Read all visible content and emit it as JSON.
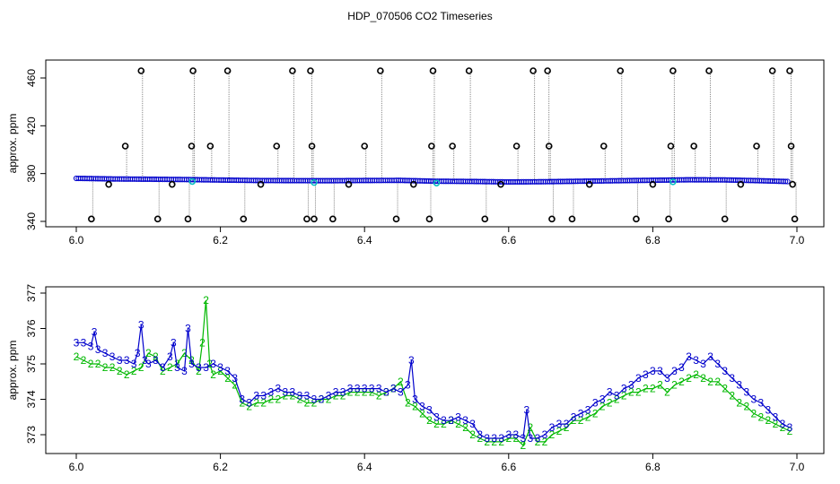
{
  "title": "HDP_070506  CO2 Timeseries",
  "colors": {
    "series2": "#00b800",
    "series3": "#0000cc",
    "outlier": "#000000",
    "flag": "#00bfbf",
    "drop": "#888888"
  },
  "chart_data": [
    {
      "type": "scatter",
      "ylabel": "approx. ppm",
      "xlabel": "",
      "xlim": [
        6.0,
        7.0
      ],
      "ylim": [
        340,
        470
      ],
      "x_ticks": [
        "6.0",
        "6.2",
        "6.4",
        "6.6",
        "6.8",
        "7.0"
      ],
      "y_ticks": [
        "340",
        "380",
        "420",
        "460"
      ],
      "grid": false,
      "baseline": [
        [
          6.0,
          376.0
        ],
        [
          6.05,
          375.5
        ],
        [
          6.1,
          375.3
        ],
        [
          6.15,
          375.0
        ],
        [
          6.2,
          374.6
        ],
        [
          6.25,
          374.2
        ],
        [
          6.3,
          374.1
        ],
        [
          6.35,
          374.0
        ],
        [
          6.4,
          374.2
        ],
        [
          6.45,
          374.3
        ],
        [
          6.5,
          373.6
        ],
        [
          6.55,
          373.4
        ],
        [
          6.6,
          373.0
        ],
        [
          6.65,
          373.2
        ],
        [
          6.7,
          373.6
        ],
        [
          6.75,
          374.0
        ],
        [
          6.8,
          374.4
        ],
        [
          6.85,
          374.8
        ],
        [
          6.9,
          374.7
        ],
        [
          6.95,
          374.0
        ],
        [
          6.99,
          373.3
        ]
      ],
      "outliers": [
        [
          6.021,
          342
        ],
        [
          6.045,
          371
        ],
        [
          6.068,
          403
        ],
        [
          6.09,
          466
        ],
        [
          6.113,
          342
        ],
        [
          6.133,
          371
        ],
        [
          6.155,
          342
        ],
        [
          6.16,
          403
        ],
        [
          6.162,
          466
        ],
        [
          6.186,
          403
        ],
        [
          6.21,
          466
        ],
        [
          6.232,
          342
        ],
        [
          6.256,
          371
        ],
        [
          6.278,
          403
        ],
        [
          6.3,
          466
        ],
        [
          6.32,
          342
        ],
        [
          6.325,
          466
        ],
        [
          6.327,
          403
        ],
        [
          6.33,
          342
        ],
        [
          6.356,
          342
        ],
        [
          6.378,
          371
        ],
        [
          6.4,
          403
        ],
        [
          6.422,
          466
        ],
        [
          6.444,
          342
        ],
        [
          6.468,
          371
        ],
        [
          6.49,
          342
        ],
        [
          6.493,
          403
        ],
        [
          6.495,
          466
        ],
        [
          6.522,
          403
        ],
        [
          6.545,
          466
        ],
        [
          6.567,
          342
        ],
        [
          6.589,
          371
        ],
        [
          6.611,
          403
        ],
        [
          6.634,
          466
        ],
        [
          6.654,
          466
        ],
        [
          6.656,
          403
        ],
        [
          6.66,
          342
        ],
        [
          6.688,
          342
        ],
        [
          6.712,
          371
        ],
        [
          6.732,
          403
        ],
        [
          6.755,
          466
        ],
        [
          6.777,
          342
        ],
        [
          6.8,
          371
        ],
        [
          6.822,
          342
        ],
        [
          6.825,
          403
        ],
        [
          6.828,
          466
        ],
        [
          6.857,
          403
        ],
        [
          6.878,
          466
        ],
        [
          6.9,
          342
        ],
        [
          6.922,
          371
        ],
        [
          6.944,
          403
        ],
        [
          6.966,
          466
        ],
        [
          6.99,
          466
        ],
        [
          6.992,
          403
        ],
        [
          6.994,
          371
        ],
        [
          6.997,
          342
        ]
      ],
      "flags": [
        6.161,
        6.33,
        6.5,
        6.828
      ],
      "markers": [
        "o",
        "o",
        "o"
      ]
    },
    {
      "type": "line",
      "ylabel": "approx. ppm",
      "xlabel": "",
      "xlim": [
        6.0,
        7.0
      ],
      "ylim": [
        372.5,
        377.3
      ],
      "x_ticks": [
        "6.0",
        "6.2",
        "6.4",
        "6.6",
        "6.8",
        "7.0"
      ],
      "y_ticks": [
        "373",
        "374",
        "375",
        "376",
        "377"
      ],
      "grid": false,
      "series": [
        {
          "name": "2",
          "x": [
            6.0,
            6.01,
            6.02,
            6.03,
            6.04,
            6.05,
            6.06,
            6.07,
            6.08,
            6.09,
            6.1,
            6.11,
            6.12,
            6.13,
            6.14,
            6.15,
            6.16,
            6.17,
            6.175,
            6.18,
            6.185,
            6.19,
            6.2,
            6.21,
            6.22,
            6.23,
            6.24,
            6.25,
            6.26,
            6.27,
            6.28,
            6.29,
            6.3,
            6.31,
            6.32,
            6.33,
            6.34,
            6.35,
            6.36,
            6.37,
            6.38,
            6.39,
            6.4,
            6.41,
            6.42,
            6.43,
            6.44,
            6.45,
            6.46,
            6.47,
            6.48,
            6.49,
            6.5,
            6.51,
            6.52,
            6.53,
            6.54,
            6.55,
            6.56,
            6.57,
            6.58,
            6.59,
            6.6,
            6.61,
            6.62,
            6.63,
            6.64,
            6.65,
            6.66,
            6.67,
            6.68,
            6.69,
            6.7,
            6.71,
            6.72,
            6.73,
            6.74,
            6.75,
            6.76,
            6.77,
            6.78,
            6.79,
            6.8,
            6.81,
            6.82,
            6.83,
            6.84,
            6.85,
            6.86,
            6.87,
            6.88,
            6.89,
            6.9,
            6.91,
            6.92,
            6.93,
            6.94,
            6.95,
            6.96,
            6.97,
            6.98,
            6.99
          ],
          "y": [
            375.2,
            375.1,
            375.0,
            375.0,
            374.9,
            374.9,
            374.8,
            374.7,
            374.8,
            374.9,
            375.3,
            375.2,
            374.8,
            374.9,
            375.0,
            375.3,
            375.1,
            374.8,
            375.6,
            376.8,
            375.0,
            374.7,
            374.8,
            374.6,
            374.4,
            373.9,
            373.8,
            373.9,
            373.9,
            374.0,
            374.0,
            374.1,
            374.1,
            374.0,
            373.9,
            373.9,
            374.0,
            374.0,
            374.1,
            374.1,
            374.2,
            374.2,
            374.2,
            374.2,
            374.1,
            374.2,
            374.3,
            374.5,
            373.9,
            373.8,
            373.6,
            373.4,
            373.3,
            373.3,
            373.4,
            373.3,
            373.2,
            373.0,
            372.9,
            372.8,
            372.8,
            372.8,
            372.9,
            372.9,
            372.7,
            373.2,
            372.8,
            372.8,
            373.0,
            373.1,
            373.2,
            373.4,
            373.4,
            373.5,
            373.6,
            373.8,
            373.9,
            374.0,
            374.1,
            374.2,
            374.2,
            374.3,
            374.3,
            374.4,
            374.2,
            374.4,
            374.5,
            374.6,
            374.7,
            374.6,
            374.5,
            374.5,
            374.3,
            374.1,
            373.9,
            373.8,
            373.6,
            373.5,
            373.4,
            373.3,
            373.2,
            373.1
          ]
        },
        {
          "name": "3",
          "x": [
            6.0,
            6.01,
            6.02,
            6.025,
            6.03,
            6.04,
            6.05,
            6.06,
            6.07,
            6.08,
            6.085,
            6.09,
            6.095,
            6.1,
            6.11,
            6.12,
            6.13,
            6.135,
            6.14,
            6.15,
            6.155,
            6.16,
            6.17,
            6.18,
            6.19,
            6.2,
            6.21,
            6.22,
            6.23,
            6.24,
            6.25,
            6.26,
            6.27,
            6.28,
            6.29,
            6.3,
            6.31,
            6.32,
            6.33,
            6.34,
            6.35,
            6.36,
            6.37,
            6.38,
            6.39,
            6.4,
            6.41,
            6.42,
            6.43,
            6.44,
            6.45,
            6.46,
            6.465,
            6.47,
            6.48,
            6.49,
            6.5,
            6.51,
            6.52,
            6.53,
            6.54,
            6.55,
            6.56,
            6.57,
            6.58,
            6.59,
            6.6,
            6.61,
            6.62,
            6.625,
            6.63,
            6.64,
            6.65,
            6.66,
            6.67,
            6.68,
            6.69,
            6.7,
            6.71,
            6.72,
            6.73,
            6.74,
            6.75,
            6.76,
            6.77,
            6.78,
            6.79,
            6.8,
            6.81,
            6.82,
            6.83,
            6.84,
            6.85,
            6.86,
            6.87,
            6.88,
            6.89,
            6.9,
            6.91,
            6.92,
            6.93,
            6.94,
            6.95,
            6.96,
            6.97,
            6.98,
            6.99
          ],
          "y": [
            375.6,
            375.6,
            375.5,
            375.9,
            375.4,
            375.3,
            375.2,
            375.1,
            375.1,
            375.0,
            375.3,
            376.1,
            375.1,
            375.0,
            375.1,
            374.9,
            375.2,
            375.6,
            374.9,
            374.8,
            376.0,
            375.0,
            374.9,
            374.9,
            375.0,
            374.9,
            374.8,
            374.6,
            374.0,
            373.9,
            374.1,
            374.1,
            374.2,
            374.3,
            374.2,
            374.2,
            374.1,
            374.1,
            374.0,
            374.0,
            374.1,
            374.2,
            374.2,
            374.3,
            374.3,
            374.3,
            374.3,
            374.3,
            374.2,
            374.3,
            374.2,
            374.4,
            375.1,
            374.0,
            373.8,
            373.7,
            373.5,
            373.4,
            373.4,
            373.5,
            373.4,
            373.3,
            373.0,
            372.9,
            372.9,
            372.9,
            373.0,
            373.0,
            372.9,
            373.7,
            372.9,
            372.9,
            373.0,
            373.2,
            373.3,
            373.3,
            373.5,
            373.6,
            373.7,
            373.9,
            374.0,
            374.2,
            374.1,
            374.3,
            374.4,
            374.6,
            374.7,
            374.8,
            374.8,
            374.6,
            374.8,
            374.9,
            375.2,
            375.1,
            375.0,
            375.2,
            375.0,
            374.8,
            374.6,
            374.4,
            374.2,
            374.0,
            373.9,
            373.7,
            373.5,
            373.3,
            373.2
          ]
        }
      ]
    }
  ]
}
